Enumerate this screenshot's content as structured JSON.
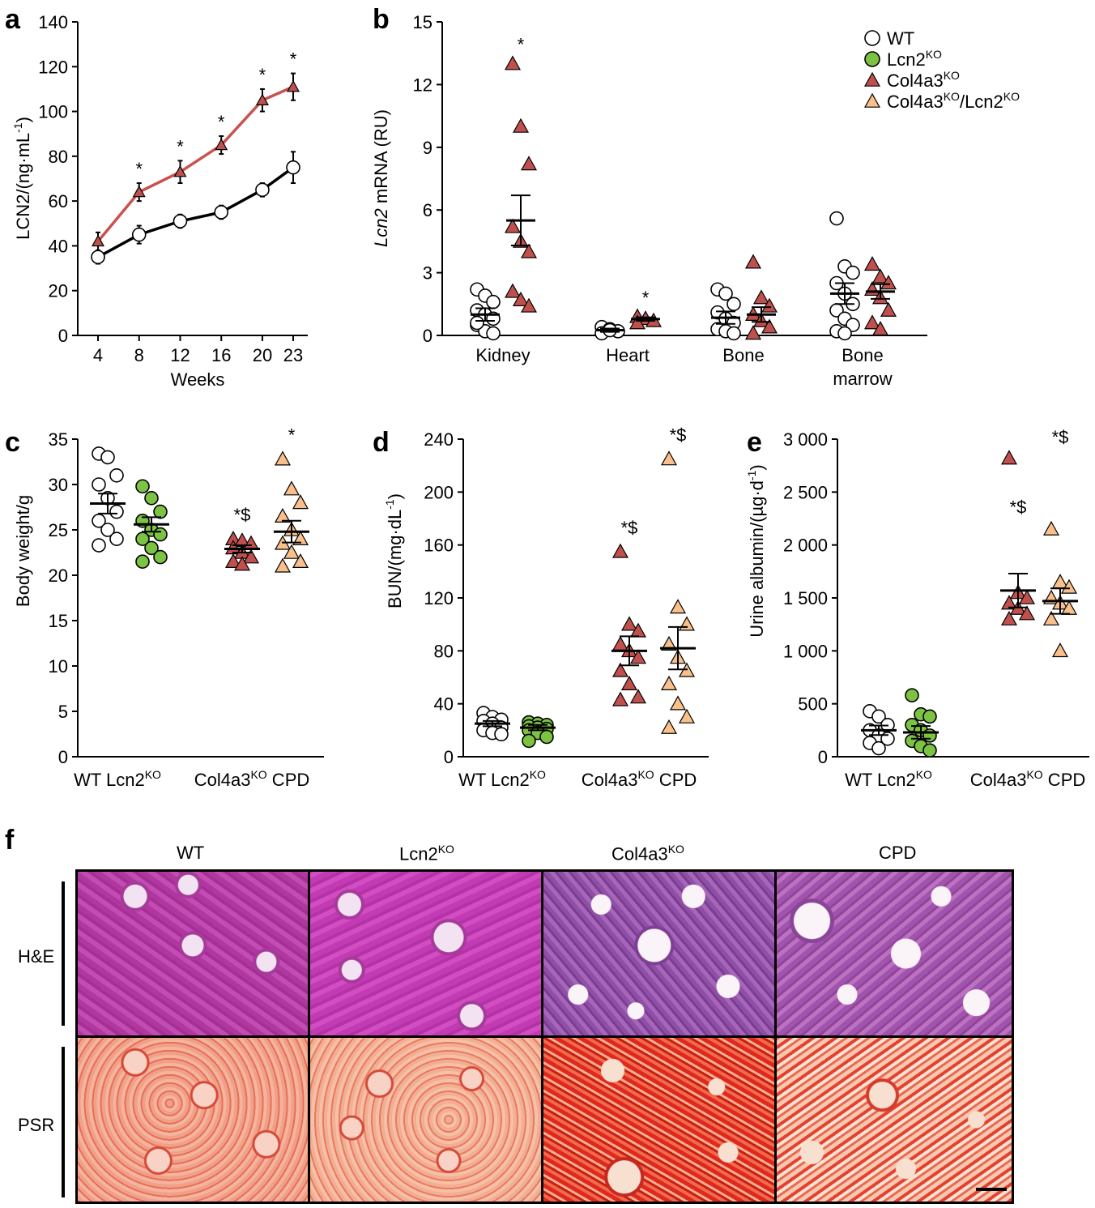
{
  "panel_labels": {
    "a": "a",
    "b": "b",
    "c": "c",
    "d": "d",
    "e": "e",
    "f": "f"
  },
  "colors": {
    "wt_fill": "#ffffff",
    "lcn2_fill": "#7cc243",
    "col4a3_fill": "#c0504d",
    "cpd_fill": "#f9c08b",
    "line_red": "#c9524f",
    "line_black": "#000000"
  },
  "chart_data": [
    {
      "id": "a",
      "type": "line",
      "title": "",
      "xlabel": "Weeks",
      "ylabel": "LCN2/(ng·mL",
      "ylabel_sup": "-1",
      "ylabel_close": ")",
      "x": [
        4,
        8,
        12,
        16,
        20,
        23
      ],
      "x_ticks": [
        "4",
        "8",
        "12",
        "16",
        "20",
        "23"
      ],
      "ylim": [
        0,
        140
      ],
      "y_ticks": [
        0,
        20,
        40,
        60,
        80,
        100,
        120,
        140
      ],
      "series": [
        {
          "name": "Col4a3KO",
          "marker": "triangle",
          "values": [
            42,
            64,
            73,
            85,
            105,
            111
          ],
          "err": [
            4,
            4,
            5,
            4,
            5,
            6
          ]
        },
        {
          "name": "WT",
          "marker": "circle",
          "values": [
            35,
            45,
            51,
            55,
            65,
            75
          ],
          "err": [
            3,
            4,
            3,
            3,
            3,
            7
          ]
        }
      ],
      "annotations": [
        {
          "x": 8,
          "text": "*"
        },
        {
          "x": 12,
          "text": "*"
        },
        {
          "x": 16,
          "text": "*"
        },
        {
          "x": 20,
          "text": "*"
        },
        {
          "x": 23,
          "text": "*"
        }
      ]
    },
    {
      "id": "b",
      "type": "scatter",
      "ylabel_italic": "Lcn2",
      "ylabel": " mRNA (RU)",
      "ylim": [
        0,
        15
      ],
      "y_ticks": [
        0,
        3,
        6,
        9,
        12,
        15
      ],
      "categories": [
        "Kidney",
        "Heart",
        "Bone",
        "Bone\nmarrow"
      ],
      "category_lines": [
        [
          "Kidney"
        ],
        [
          "Heart"
        ],
        [
          "Bone"
        ],
        [
          "Bone",
          "marrow"
        ]
      ],
      "series": [
        {
          "name": "WT",
          "marker": "circle",
          "fill": "#ffffff",
          "points": [
            [
              2.2,
              1.9,
              1.6,
              1.2,
              1.0,
              0.8,
              0.5,
              0.2,
              0.1,
              0.6
            ],
            [
              0.4,
              0.3,
              0.2,
              0.1,
              0.25
            ],
            [
              2.2,
              2.0,
              1.5,
              1.1,
              0.8,
              0.6,
              0.3,
              0.2,
              0.1
            ],
            [
              5.6,
              3.3,
              3.0,
              2.5,
              2.0,
              1.5,
              1.2,
              0.8,
              0.5,
              0.2,
              0.1
            ]
          ],
          "means": [
            1.0,
            0.25,
            0.85,
            2.0
          ],
          "sem": [
            0.3,
            0.08,
            0.3,
            0.5
          ]
        },
        {
          "name": "Col4a3KO",
          "marker": "triangle",
          "fill": "#c0504d",
          "points": [
            [
              13.0,
              10.0,
              8.2,
              5.2,
              4.5,
              4.0,
              2.1,
              1.7,
              1.4
            ],
            [
              0.9,
              0.8,
              0.7,
              0.6
            ],
            [
              3.5,
              1.8,
              1.4,
              1.0,
              0.7,
              0.4,
              0.1
            ],
            [
              3.4,
              2.8,
              2.5,
              2.2,
              1.8,
              1.2,
              0.6,
              0.3
            ]
          ],
          "means": [
            5.5,
            0.78,
            1.0,
            2.1
          ],
          "sem": [
            1.2,
            0.08,
            0.35,
            0.35
          ]
        }
      ],
      "annotations": [
        {
          "category": 0,
          "text": "*"
        },
        {
          "category": 1,
          "text": "*"
        }
      ],
      "legend": [
        {
          "label": "WT",
          "sup": "",
          "marker": "circle",
          "fill": "#ffffff"
        },
        {
          "label": "Lcn2",
          "sup": "KO",
          "marker": "circle",
          "fill": "#7cc243"
        },
        {
          "label": "Col4a3",
          "sup": "KO",
          "marker": "triangle",
          "fill": "#c0504d"
        },
        {
          "label": "Col4a3",
          "sup": "KO",
          "label2": "/Lcn2",
          "sup2": "KO",
          "marker": "triangle",
          "fill": "#f9c08b"
        }
      ]
    },
    {
      "id": "c",
      "type": "scatter",
      "ylabel": "Body weight/g",
      "ylim": [
        0,
        35
      ],
      "y_ticks": [
        0,
        5,
        10,
        15,
        20,
        25,
        30,
        35
      ],
      "groups": [
        {
          "label": "WT",
          "sup": "",
          "marker": "circle",
          "fill": "#ffffff",
          "values": [
            33.4,
            33.0,
            31.0,
            30.0,
            28.5,
            27.0,
            26.0,
            25.0,
            24.0,
            23.3
          ],
          "mean": 27.9,
          "sem": 1.1
        },
        {
          "label": "Lcn2",
          "sup": "KO",
          "marker": "circle",
          "fill": "#7cc243",
          "values": [
            29.8,
            28.5,
            27.0,
            26.0,
            25.0,
            24.5,
            24.0,
            23.0,
            22.0,
            21.5
          ],
          "mean": 25.6,
          "sem": 0.8
        },
        {
          "label": "Col4a3",
          "sup": "KO",
          "marker": "triangle",
          "fill": "#c0504d",
          "values": [
            24.0,
            23.8,
            23.5,
            23.0,
            22.5,
            22.0,
            21.5,
            21.2
          ],
          "mean": 22.9,
          "sem": 0.4
        },
        {
          "label": "CPD",
          "sup": "",
          "marker": "triangle",
          "fill": "#f9c08b",
          "values": [
            32.8,
            29.5,
            28.0,
            26.5,
            25.0,
            24.0,
            23.5,
            22.5,
            21.5,
            21.0
          ],
          "mean": 24.8,
          "sem": 1.2
        }
      ],
      "annotations": [
        {
          "group": 2,
          "text": "*$"
        },
        {
          "group": 3,
          "text": "*"
        }
      ]
    },
    {
      "id": "d",
      "type": "scatter",
      "ylabel": "BUN/(mg·dL",
      "ylabel_sup": "-1",
      "ylabel_close": ")",
      "ylim": [
        0,
        240
      ],
      "y_ticks": [
        0,
        40,
        80,
        120,
        160,
        200,
        240
      ],
      "groups": [
        {
          "label": "WT",
          "sup": "",
          "marker": "circle",
          "fill": "#ffffff",
          "values": [
            33,
            30,
            28,
            27,
            25,
            22,
            20,
            18,
            17
          ],
          "mean": 25,
          "sem": 2
        },
        {
          "label": "Lcn2",
          "sup": "KO",
          "marker": "circle",
          "fill": "#7cc243",
          "values": [
            26,
            25,
            24,
            23,
            22,
            21,
            20,
            18,
            15,
            12
          ],
          "mean": 22,
          "sem": 2
        },
        {
          "label": "Col4a3",
          "sup": "KO",
          "marker": "triangle",
          "fill": "#c0504d",
          "values": [
            155,
            100,
            95,
            85,
            80,
            75,
            65,
            55,
            45,
            43
          ],
          "mean": 80,
          "sem": 11
        },
        {
          "label": "CPD",
          "sup": "",
          "marker": "triangle",
          "fill": "#f9c08b",
          "values": [
            225,
            113,
            100,
            85,
            75,
            65,
            55,
            40,
            30,
            22
          ],
          "mean": 82,
          "sem": 16
        }
      ],
      "annotations": [
        {
          "group": 2,
          "text": "*$"
        },
        {
          "group": 3,
          "text": "*$"
        }
      ]
    },
    {
      "id": "e",
      "type": "scatter",
      "ylabel": "Urine albumin/(µg·d",
      "ylabel_sup": "-1",
      "ylabel_close": ")",
      "ylim": [
        0,
        3000
      ],
      "y_ticks": [
        0,
        500,
        1000,
        1500,
        2000,
        2500,
        3000
      ],
      "y_tick_labels": [
        "0",
        "500",
        "1 000",
        "1 500",
        "2 000",
        "2 500",
        "3 000"
      ],
      "groups": [
        {
          "label": "WT",
          "sup": "",
          "marker": "circle",
          "fill": "#ffffff",
          "values": [
            430,
            380,
            300,
            250,
            200,
            170,
            130,
            80
          ],
          "mean": 250,
          "sem": 45
        },
        {
          "label": "Lcn2",
          "sup": "KO",
          "marker": "circle",
          "fill": "#7cc243",
          "values": [
            580,
            400,
            380,
            300,
            250,
            200,
            150,
            100,
            60
          ],
          "mean": 230,
          "sem": 60
        },
        {
          "label": "Col4a3",
          "sup": "KO",
          "marker": "triangle",
          "fill": "#c0504d",
          "values": [
            2820,
            1550,
            1500,
            1450,
            1400,
            1350,
            1300
          ],
          "mean": 1570,
          "sem": 160
        },
        {
          "label": "CPD",
          "sup": "",
          "marker": "triangle",
          "fill": "#f9c08b",
          "values": [
            2150,
            1650,
            1600,
            1500,
            1450,
            1400,
            1300,
            1000
          ],
          "mean": 1470,
          "sem": 120
        }
      ],
      "annotations": [
        {
          "group": 2,
          "text": "*$",
          "y": 2300
        },
        {
          "group": 3,
          "text": "*$",
          "y": 2960
        }
      ]
    }
  ],
  "histology": {
    "columns": [
      {
        "label": "WT",
        "sup": ""
      },
      {
        "label": "Lcn2",
        "sup": "KO"
      },
      {
        "label": "Col4a3",
        "sup": "KO"
      },
      {
        "label": "CPD",
        "sup": ""
      }
    ],
    "rows": [
      "H&E",
      "PSR"
    ]
  }
}
